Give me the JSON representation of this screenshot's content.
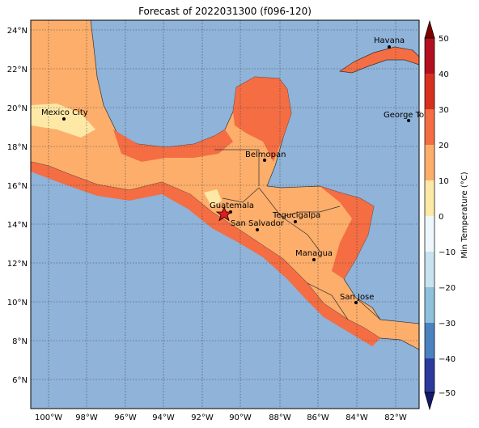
{
  "title": "Forecast of 2022031300 (f096-120)",
  "colors": {
    "ocean": "#8fb3d9",
    "land_warm": "#fdae6b",
    "land_hot": "#f46d43",
    "land_mild": "#fee8a6"
  },
  "map": {
    "lon_ticks": [
      "100°W",
      "98°W",
      "96°W",
      "94°W",
      "92°W",
      "90°W",
      "88°W",
      "86°W",
      "84°W",
      "82°W"
    ],
    "lat_ticks": [
      "24°N",
      "22°N",
      "20°N",
      "18°N",
      "16°N",
      "14°N",
      "12°N",
      "10°N",
      "8°N",
      "6°N"
    ]
  },
  "cities": [
    {
      "name": "Havana"
    },
    {
      "name": "Mexico City"
    },
    {
      "name": "George Tov"
    },
    {
      "name": "Belmopan"
    },
    {
      "name": "Guatemala"
    },
    {
      "name": "Tegucigalpa"
    },
    {
      "name": "San Salvador"
    },
    {
      "name": "Managua"
    },
    {
      "name": "San Jose"
    }
  ],
  "colorbar": {
    "label": "Min Temperature (°C)",
    "ticks": [
      "50",
      "40",
      "30",
      "20",
      "10",
      "0",
      "−10",
      "−20",
      "−30",
      "−40",
      "−50"
    ]
  }
}
